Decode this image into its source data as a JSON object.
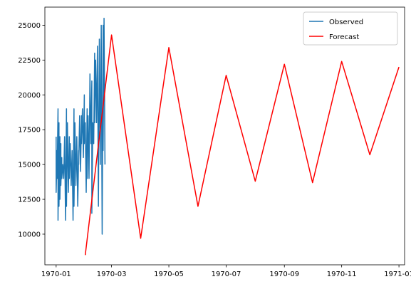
{
  "chart_data": {
    "type": "line",
    "title": "",
    "xlabel": "",
    "ylabel": "",
    "x_axis_type": "date",
    "xlim": [
      "1969-12-20",
      "1971-01-07"
    ],
    "ylim": [
      7800,
      26300
    ],
    "x_ticks": [
      "1970-01",
      "1970-03",
      "1970-05",
      "1970-07",
      "1970-09",
      "1970-11",
      "1971-01"
    ],
    "y_ticks": [
      10000,
      12500,
      15000,
      17500,
      20000,
      22500,
      25000
    ],
    "y_tick_labels": [
      "10000",
      "12500",
      "15000",
      "17500",
      "20000",
      "22500",
      "25000"
    ],
    "grid": false,
    "legend_position": "top-right",
    "series": [
      {
        "name": "Observed",
        "color": "#1f77b4",
        "points": [
          [
            "1970-01-01",
            17000
          ],
          [
            "1970-01-01",
            13000
          ],
          [
            "1970-01-02",
            16000
          ],
          [
            "1970-01-02",
            14000
          ],
          [
            "1970-01-03",
            19000
          ],
          [
            "1970-01-03",
            11000
          ],
          [
            "1970-01-04",
            18000
          ],
          [
            "1970-01-04",
            12000
          ],
          [
            "1970-01-05",
            17000
          ],
          [
            "1970-01-05",
            12500
          ],
          [
            "1970-01-06",
            16500
          ],
          [
            "1970-01-06",
            13500
          ],
          [
            "1970-01-07",
            15500
          ],
          [
            "1970-01-07",
            14000
          ],
          [
            "1970-01-08",
            15000
          ],
          [
            "1970-01-09",
            14000
          ],
          [
            "1970-01-10",
            17000
          ],
          [
            "1970-01-11",
            11000
          ],
          [
            "1970-01-12",
            19000
          ],
          [
            "1970-01-12",
            12000
          ],
          [
            "1970-01-13",
            18000
          ],
          [
            "1970-01-14",
            13000
          ],
          [
            "1970-01-15",
            17000
          ],
          [
            "1970-01-15",
            14000
          ],
          [
            "1970-01-16",
            16500
          ],
          [
            "1970-01-17",
            13500
          ],
          [
            "1970-01-18",
            16000
          ],
          [
            "1970-01-19",
            11000
          ],
          [
            "1970-01-20",
            19000
          ],
          [
            "1970-01-20",
            12000
          ],
          [
            "1970-01-21",
            18000
          ],
          [
            "1970-01-22",
            13500
          ],
          [
            "1970-01-23",
            17000
          ],
          [
            "1970-01-24",
            12000
          ],
          [
            "1970-01-25",
            16000
          ],
          [
            "1970-01-25",
            15000
          ],
          [
            "1970-01-26",
            18500
          ],
          [
            "1970-01-27",
            14500
          ],
          [
            "1970-01-28",
            18500
          ],
          [
            "1970-01-28",
            16500
          ],
          [
            "1970-01-29",
            19000
          ],
          [
            "1970-01-30",
            15500
          ],
          [
            "1970-01-31",
            20000
          ],
          [
            "1970-01-31",
            16500
          ],
          [
            "1970-02-01",
            18000
          ],
          [
            "1970-02-02",
            13000
          ],
          [
            "1970-02-03",
            19000
          ],
          [
            "1970-02-03",
            14000
          ],
          [
            "1970-02-04",
            18500
          ],
          [
            "1970-02-05",
            14000
          ],
          [
            "1970-02-06",
            21500
          ],
          [
            "1970-02-07",
            16500
          ],
          [
            "1970-02-08",
            21000
          ],
          [
            "1970-02-08",
            11500
          ],
          [
            "1970-02-09",
            18000
          ],
          [
            "1970-02-10",
            16500
          ],
          [
            "1970-02-11",
            23000
          ],
          [
            "1970-02-11",
            18000
          ],
          [
            "1970-02-12",
            22500
          ],
          [
            "1970-02-13",
            18000
          ],
          [
            "1970-02-14",
            23500
          ],
          [
            "1970-02-15",
            12000
          ],
          [
            "1970-02-16",
            24000
          ],
          [
            "1970-02-17",
            15000
          ],
          [
            "1970-02-18",
            25000
          ],
          [
            "1970-02-19",
            10000
          ],
          [
            "1970-02-20",
            25000
          ],
          [
            "1970-02-20",
            16000
          ],
          [
            "1970-02-21",
            25500
          ],
          [
            "1970-02-22",
            15000
          ]
        ]
      },
      {
        "name": "Forecast",
        "color": "#ff0000",
        "points": [
          [
            "1970-02-01",
            8500
          ],
          [
            "1970-03-01",
            24300
          ],
          [
            "1970-04-01",
            9700
          ],
          [
            "1970-05-01",
            23400
          ],
          [
            "1970-06-01",
            12000
          ],
          [
            "1970-07-01",
            21400
          ],
          [
            "1970-08-01",
            13800
          ],
          [
            "1970-09-01",
            22200
          ],
          [
            "1970-10-01",
            13700
          ],
          [
            "1970-11-01",
            22400
          ],
          [
            "1970-12-01",
            15700
          ],
          [
            "1971-01-01",
            22000
          ]
        ]
      }
    ]
  }
}
